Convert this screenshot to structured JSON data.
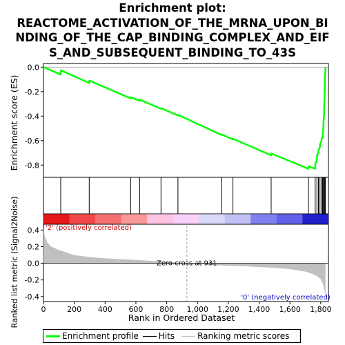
{
  "title_lines": [
    "Enrichment plot:",
    "REACTOME_ACTIVATION_OF_THE_MRNA_UPON_BI",
    "NDING_OF_THE_CAP_BINDING_COMPLEX_AND_EIF",
    "S_AND_SUBSEQUENT_BINDING_TO_43S"
  ],
  "colors": {
    "es_line": "#00ff00",
    "hits": "#000000",
    "metric_fill": "#c0c0c0",
    "pos_label": "#cc0000",
    "neg_label": "#0000cc",
    "zero_line": "#b0b0b0"
  },
  "chart_data": {
    "type": "line",
    "xlabel": "Rank in Ordered Dataset",
    "x_ticks": [
      0,
      200,
      400,
      600,
      800,
      1000,
      1200,
      1400,
      1600,
      1800
    ],
    "x_tick_labels": [
      "0",
      "200",
      "400",
      "600",
      "800",
      "1,000",
      "1,200",
      "1,400",
      "1,600",
      "1,800"
    ],
    "xlim": [
      0,
      1850
    ],
    "es": {
      "ylabel": "Enrichment score (ES)",
      "ylim": [
        -0.9,
        0.03
      ],
      "y_ticks": [
        0.0,
        -0.2,
        -0.4,
        -0.6,
        -0.8
      ],
      "y_tick_labels": [
        "0.0",
        "-0.2",
        "-0.4",
        "-0.6",
        "-0.8"
      ],
      "series": [
        {
          "x": [
            0,
            112,
            113,
            297,
            298,
            566,
            567,
            624,
            625,
            763,
            764,
            873,
            874,
            1157,
            1158,
            1230,
            1231,
            1478,
            1479,
            1720,
            1721,
            1764,
            1765,
            1775,
            1776,
            1785,
            1786,
            1795,
            1796,
            1805,
            1806,
            1812,
            1813,
            1817,
            1818,
            1822,
            1823,
            1826,
            1827,
            1830,
            1831
          ],
          "y": [
            0.0,
            -0.06,
            -0.025,
            -0.13,
            -0.11,
            -0.255,
            -0.245,
            -0.275,
            -0.265,
            -0.34,
            -0.335,
            -0.395,
            -0.39,
            -0.555,
            -0.55,
            -0.59,
            -0.585,
            -0.72,
            -0.705,
            -0.83,
            -0.81,
            -0.83,
            -0.79,
            -0.76,
            -0.72,
            -0.7,
            -0.68,
            -0.65,
            -0.63,
            -0.6,
            -0.58,
            -0.58,
            -0.55,
            -0.5,
            -0.45,
            -0.38,
            -0.3,
            -0.2,
            -0.1,
            -0.05,
            0.0
          ]
        }
      ]
    },
    "hits": [
      112,
      297,
      566,
      624,
      763,
      873,
      1157,
      1230,
      1478,
      1720,
      1764,
      1775,
      1785,
      1795,
      1805,
      1812,
      1817,
      1822,
      1826,
      1830
    ],
    "heatmap_colors": [
      "#e81818",
      "#f04848",
      "#f47070",
      "#f89898",
      "#fcc4e0",
      "#f8d0f8",
      "#d8d8f8",
      "#c0c0f4",
      "#8080f0",
      "#6060e8",
      "#2020cc"
    ],
    "metric": {
      "ylabel": "Ranked list metric (Signal2Noise)",
      "ylim": [
        -0.46,
        0.47
      ],
      "y_ticks": [
        0.4,
        0.2,
        0.0,
        -0.2,
        -0.4
      ],
      "y_tick_labels": [
        "0.4",
        "0.2",
        "0.0",
        "-0.2",
        "-0.4"
      ],
      "x": [
        0,
        10,
        25,
        50,
        100,
        200,
        300,
        400,
        500,
        600,
        700,
        800,
        931,
        1000,
        1100,
        1200,
        1300,
        1400,
        1500,
        1600,
        1650,
        1700,
        1750,
        1780,
        1800,
        1815,
        1825,
        1831
      ],
      "values": [
        0.4,
        0.32,
        0.25,
        0.2,
        0.16,
        0.1,
        0.075,
        0.06,
        0.05,
        0.04,
        0.03,
        0.02,
        0.0,
        -0.01,
        -0.02,
        -0.03,
        -0.035,
        -0.045,
        -0.055,
        -0.07,
        -0.085,
        -0.1,
        -0.13,
        -0.16,
        -0.19,
        -0.25,
        -0.33,
        -0.42
      ]
    },
    "zero_cross_label": "Zero cross at 931",
    "zero_cross_x": 931,
    "pos_label": "'2' (positively correlated)",
    "neg_label": "'0' (negatively correlated)"
  },
  "legend": {
    "items": [
      {
        "label": "Enrichment profile",
        "color": "#00ff00"
      },
      {
        "label": "Hits",
        "color": "#000000"
      },
      {
        "label": "Ranking metric scores",
        "color": "#c0c0c0"
      }
    ]
  }
}
